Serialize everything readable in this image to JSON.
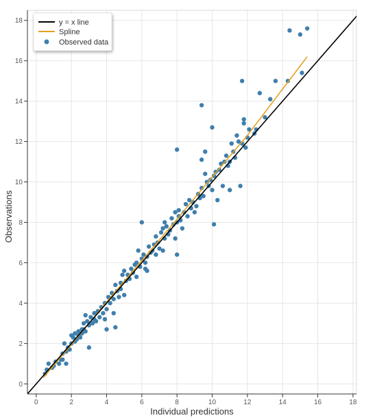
{
  "chart_data": {
    "type": "scatter",
    "xlabel": "Individual predictions",
    "ylabel": "Observations",
    "xlim": [
      -0.5,
      18.2
    ],
    "ylim": [
      -0.5,
      18.5
    ],
    "xticks": [
      0,
      2,
      4,
      6,
      8,
      10,
      12,
      14,
      16,
      18
    ],
    "yticks": [
      0,
      2,
      4,
      6,
      8,
      10,
      12,
      14,
      16,
      18
    ],
    "grid": true,
    "legend_position": "top-left",
    "colors": {
      "identity_line": "#000000",
      "spline": "#e6a020",
      "points": "#3f7fad",
      "grid": "#e6e6e6",
      "axis": "#333333"
    },
    "series": [
      {
        "name": "y = x line",
        "kind": "line",
        "x": [
          -0.5,
          18.5
        ],
        "y": [
          -0.5,
          18.5
        ]
      },
      {
        "name": "Spline",
        "kind": "line",
        "x": [
          0.4,
          2,
          4,
          6,
          8,
          10,
          12,
          14,
          15.4
        ],
        "y": [
          0.3,
          1.95,
          4.05,
          6.1,
          8.15,
          10.25,
          12.3,
          14.6,
          16.2
        ]
      },
      {
        "name": "Observed data",
        "kind": "scatter",
        "points": [
          [
            0.5,
            0.5
          ],
          [
            0.6,
            0.7
          ],
          [
            0.7,
            1.0
          ],
          [
            0.9,
            0.8
          ],
          [
            1.0,
            0.9
          ],
          [
            1.1,
            1.1
          ],
          [
            1.3,
            1.0
          ],
          [
            1.4,
            1.2
          ],
          [
            1.5,
            1.5
          ],
          [
            1.5,
            1.2
          ],
          [
            1.6,
            2.0
          ],
          [
            1.7,
            1.6
          ],
          [
            1.7,
            1.0
          ],
          [
            1.8,
            1.8
          ],
          [
            1.9,
            1.7
          ],
          [
            2.0,
            2.4
          ],
          [
            2.0,
            2.0
          ],
          [
            2.1,
            2.3
          ],
          [
            2.2,
            2.1
          ],
          [
            2.2,
            2.5
          ],
          [
            2.3,
            2.2
          ],
          [
            2.4,
            2.6
          ],
          [
            2.4,
            2.4
          ],
          [
            2.5,
            2.3
          ],
          [
            2.6,
            2.7
          ],
          [
            2.6,
            2.5
          ],
          [
            2.7,
            3.0
          ],
          [
            2.7,
            2.7
          ],
          [
            2.8,
            2.6
          ],
          [
            2.8,
            3.4
          ],
          [
            2.9,
            3.1
          ],
          [
            3.0,
            2.9
          ],
          [
            3.0,
            1.8
          ],
          [
            3.1,
            3.3
          ],
          [
            3.2,
            3.0
          ],
          [
            3.3,
            3.5
          ],
          [
            3.3,
            3.2
          ],
          [
            3.4,
            3.1
          ],
          [
            3.5,
            3.6
          ],
          [
            3.6,
            3.3
          ],
          [
            3.7,
            3.8
          ],
          [
            3.8,
            3.5
          ],
          [
            3.9,
            4.0
          ],
          [
            3.9,
            3.2
          ],
          [
            4.0,
            2.7
          ],
          [
            4.0,
            3.7
          ],
          [
            4.1,
            4.3
          ],
          [
            4.2,
            4.0
          ],
          [
            4.3,
            4.5
          ],
          [
            4.4,
            4.2
          ],
          [
            4.4,
            3.5
          ],
          [
            4.5,
            4.9
          ],
          [
            4.5,
            2.8
          ],
          [
            4.6,
            4.6
          ],
          [
            4.7,
            4.3
          ],
          [
            4.8,
            5.0
          ],
          [
            4.8,
            4.7
          ],
          [
            4.9,
            5.4
          ],
          [
            5.0,
            5.6
          ],
          [
            5.0,
            4.4
          ],
          [
            5.1,
            5.1
          ],
          [
            5.2,
            5.4
          ],
          [
            5.3,
            5.2
          ],
          [
            5.4,
            5.7
          ],
          [
            5.5,
            5.5
          ],
          [
            5.6,
            5.9
          ],
          [
            5.7,
            6.0
          ],
          [
            5.7,
            5.3
          ],
          [
            5.8,
            6.6
          ],
          [
            5.9,
            5.8
          ],
          [
            6.0,
            6.2
          ],
          [
            6.0,
            8.0
          ],
          [
            6.1,
            6.4
          ],
          [
            6.2,
            6.0
          ],
          [
            6.2,
            5.7
          ],
          [
            6.3,
            6.3
          ],
          [
            6.3,
            5.6
          ],
          [
            6.4,
            6.8
          ],
          [
            6.5,
            6.5
          ],
          [
            6.6,
            6.6
          ],
          [
            6.7,
            6.9
          ],
          [
            6.8,
            6.4
          ],
          [
            6.8,
            7.3
          ],
          [
            6.9,
            7.0
          ],
          [
            7.0,
            6.7
          ],
          [
            7.1,
            7.5
          ],
          [
            7.2,
            7.7
          ],
          [
            7.2,
            6.6
          ],
          [
            7.3,
            7.2
          ],
          [
            7.3,
            8.0
          ],
          [
            7.4,
            7.8
          ],
          [
            7.5,
            7.4
          ],
          [
            7.6,
            7.6
          ],
          [
            7.7,
            8.2
          ],
          [
            7.8,
            7.9
          ],
          [
            7.9,
            8.5
          ],
          [
            7.9,
            7.2
          ],
          [
            8.0,
            8.0
          ],
          [
            8.0,
            6.4
          ],
          [
            8.1,
            8.3
          ],
          [
            8.1,
            8.6
          ],
          [
            8.2,
            8.1
          ],
          [
            8.3,
            7.7
          ],
          [
            8.4,
            8.5
          ],
          [
            8.5,
            8.9
          ],
          [
            8.6,
            8.3
          ],
          [
            8.7,
            9.1
          ],
          [
            8.8,
            8.7
          ],
          [
            8.9,
            9.0
          ],
          [
            9.0,
            8.5
          ],
          [
            9.1,
            8.8
          ],
          [
            9.2,
            9.4
          ],
          [
            9.3,
            9.2
          ],
          [
            9.4,
            9.7
          ],
          [
            9.4,
            13.8
          ],
          [
            9.5,
            9.3
          ],
          [
            9.6,
            10.4
          ],
          [
            9.6,
            11.5
          ],
          [
            9.7,
            10.0
          ],
          [
            9.8,
            9.8
          ],
          [
            9.9,
            10.1
          ],
          [
            10.0,
            12.7
          ],
          [
            10.0,
            9.6
          ],
          [
            10.1,
            10.3
          ],
          [
            10.1,
            7.9
          ],
          [
            10.2,
            10.5
          ],
          [
            10.3,
            9.1
          ],
          [
            10.4,
            10.6
          ],
          [
            10.5,
            10.9
          ],
          [
            10.6,
            9.8
          ],
          [
            10.7,
            11.0
          ],
          [
            10.8,
            11.3
          ],
          [
            10.9,
            10.8
          ],
          [
            11.0,
            11.0
          ],
          [
            11.0,
            9.6
          ],
          [
            11.1,
            11.9
          ],
          [
            11.2,
            11.5
          ],
          [
            11.3,
            11.2
          ],
          [
            11.4,
            12.3
          ],
          [
            11.5,
            12.0
          ],
          [
            11.6,
            9.8
          ],
          [
            11.7,
            15.0
          ],
          [
            11.8,
            13.1
          ],
          [
            11.9,
            11.7
          ],
          [
            12.0,
            12.2
          ],
          [
            12.1,
            12.6
          ],
          [
            12.4,
            12.4
          ],
          [
            12.5,
            12.6
          ],
          [
            12.7,
            14.4
          ],
          [
            13.0,
            13.2
          ],
          [
            13.3,
            14.1
          ],
          [
            13.6,
            15.0
          ],
          [
            14.3,
            15.0
          ],
          [
            14.4,
            17.5
          ],
          [
            15.0,
            17.3
          ],
          [
            15.1,
            15.4
          ],
          [
            15.4,
            17.6
          ],
          [
            8.0,
            11.6
          ],
          [
            9.4,
            11.1
          ],
          [
            11.8,
            12.9
          ],
          [
            11.7,
            11.9
          ]
        ]
      }
    ]
  }
}
